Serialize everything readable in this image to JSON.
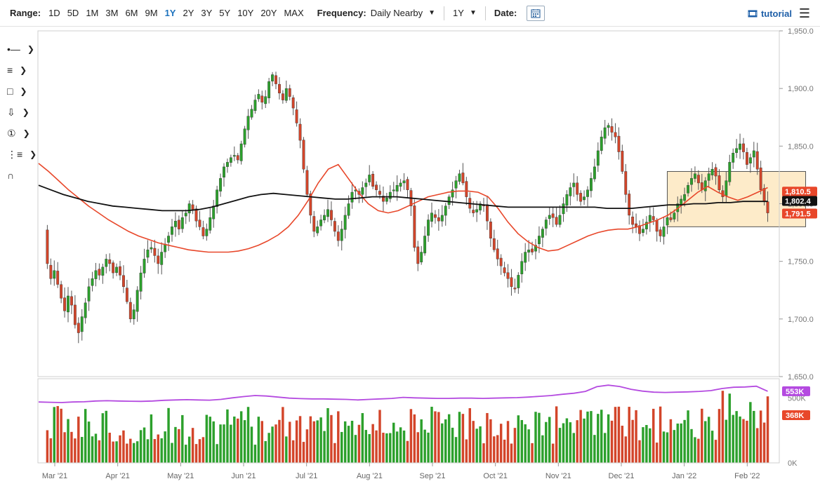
{
  "toolbar": {
    "range_label": "Range:",
    "ranges": [
      "1D",
      "5D",
      "1M",
      "3M",
      "6M",
      "9M",
      "1Y",
      "2Y",
      "3Y",
      "5Y",
      "10Y",
      "20Y",
      "MAX"
    ],
    "active_range": "1Y",
    "frequency_label": "Frequency:",
    "frequency_value": "Daily Nearby",
    "period_value": "1Y",
    "date_label": "Date:",
    "tutorial_label": "tutorial"
  },
  "tools": [
    "crosshair-icon",
    "trend-tools-icon",
    "shape-icon",
    "arrow-down-icon",
    "numbered-circle-icon",
    "fibonacci-icon",
    "magnet-icon"
  ],
  "chart_data": {
    "type": "candlestick",
    "price_axis": {
      "ticks": [
        "1,950.0",
        "1,900.0",
        "1,850.0",
        "1,800.0",
        "1,750.0",
        "1,700.0",
        "1,650.0"
      ],
      "ylim": [
        1650,
        1950
      ]
    },
    "x_axis": {
      "ticks": [
        "Mar '21",
        "Apr '21",
        "May '21",
        "Jun '21",
        "Jul '21",
        "Aug '21",
        "Sep '21",
        "Oct '21",
        "Nov '21",
        "Dec '21",
        "Jan '22",
        "Feb '22"
      ]
    },
    "price_labels": [
      {
        "text": "1,810.5",
        "color": "#e8472a"
      },
      {
        "text": "1,802.4",
        "color": "#111111"
      },
      {
        "text": "1,791.5",
        "color": "#e8472a"
      }
    ],
    "closes": [
      1776,
      1748,
      1735,
      1742,
      1730,
      1718,
      1707,
      1720,
      1712,
      1695,
      1688,
      1702,
      1714,
      1728,
      1735,
      1742,
      1738,
      1745,
      1752,
      1748,
      1740,
      1745,
      1738,
      1728,
      1715,
      1700,
      1708,
      1725,
      1740,
      1752,
      1760,
      1762,
      1755,
      1748,
      1758,
      1765,
      1772,
      1780,
      1785,
      1778,
      1788,
      1792,
      1800,
      1795,
      1785,
      1780,
      1772,
      1778,
      1788,
      1798,
      1812,
      1822,
      1832,
      1836,
      1840,
      1842,
      1838,
      1852,
      1865,
      1876,
      1882,
      1890,
      1895,
      1888,
      1893,
      1906,
      1912,
      1904,
      1896,
      1890,
      1900,
      1893,
      1883,
      1870,
      1855,
      1830,
      1808,
      1790,
      1776,
      1780,
      1786,
      1790,
      1795,
      1786,
      1776,
      1768,
      1778,
      1790,
      1800,
      1810,
      1812,
      1808,
      1814,
      1818,
      1825,
      1815,
      1812,
      1808,
      1802,
      1805,
      1810,
      1812,
      1816,
      1818,
      1820,
      1812,
      1798,
      1762,
      1748,
      1758,
      1772,
      1786,
      1792,
      1788,
      1785,
      1790,
      1798,
      1806,
      1812,
      1820,
      1826,
      1818,
      1806,
      1796,
      1792,
      1795,
      1800,
      1798,
      1785,
      1770,
      1760,
      1752,
      1746,
      1740,
      1735,
      1728,
      1726,
      1738,
      1750,
      1758,
      1760,
      1758,
      1764,
      1772,
      1778,
      1786,
      1790,
      1788,
      1782,
      1790,
      1800,
      1808,
      1814,
      1818,
      1808,
      1802,
      1806,
      1812,
      1822,
      1832,
      1846,
      1858,
      1866,
      1868,
      1862,
      1858,
      1845,
      1828,
      1808,
      1790,
      1782,
      1780,
      1774,
      1778,
      1784,
      1790,
      1786,
      1776,
      1772,
      1780,
      1788,
      1786,
      1792,
      1800,
      1804,
      1808,
      1816,
      1822,
      1826,
      1818,
      1812,
      1820,
      1826,
      1830,
      1824,
      1812,
      1806,
      1820,
      1836,
      1844,
      1848,
      1852,
      1845,
      1834,
      1840,
      1846,
      1830,
      1812,
      1802,
      1792
    ],
    "sma50": [
      1835,
      1828,
      1820,
      1812,
      1805,
      1798,
      1792,
      1786,
      1781,
      1776,
      1772,
      1769,
      1766,
      1764,
      1762,
      1760,
      1759,
      1758,
      1758,
      1758,
      1759,
      1761,
      1764,
      1768,
      1773,
      1780,
      1790,
      1803,
      1818,
      1830,
      1834,
      1822,
      1810,
      1800,
      1794,
      1792,
      1794,
      1798,
      1802,
      1806,
      1808,
      1810,
      1811,
      1811,
      1810,
      1806,
      1796,
      1784,
      1774,
      1767,
      1762,
      1759,
      1760,
      1764,
      1768,
      1772,
      1775,
      1777,
      1778,
      1778,
      1780,
      1783,
      1786,
      1790,
      1796,
      1803,
      1810,
      1815,
      1810,
      1806,
      1803,
      1806,
      1810,
      1814
    ],
    "sma200": [
      1816,
      1812,
      1808,
      1805,
      1802,
      1800,
      1798,
      1797,
      1796,
      1795,
      1794,
      1794,
      1794,
      1795,
      1797,
      1800,
      1803,
      1806,
      1808,
      1809,
      1808,
      1807,
      1806,
      1805,
      1804,
      1804,
      1805,
      1806,
      1806,
      1806,
      1805,
      1804,
      1803,
      1802,
      1801,
      1800,
      1799,
      1798,
      1797,
      1797,
      1797,
      1797,
      1797,
      1797,
      1797,
      1797,
      1796,
      1796,
      1796,
      1797,
      1798,
      1799,
      1799,
      1800,
      1800,
      1801,
      1801,
      1802,
      1802,
      1802
    ],
    "volume_axis": {
      "ticks": [
        "500K",
        "0K"
      ],
      "max": 650000
    },
    "volume_labels": [
      {
        "text": "553K",
        "color": "#b44ae0"
      },
      {
        "text": "368K",
        "color": "#e8472a"
      }
    ],
    "volume_avg": [
      470000,
      468000,
      466000,
      470000,
      472000,
      478000,
      480000,
      478000,
      476000,
      475000,
      478000,
      483000,
      486000,
      488000,
      486000,
      484000,
      490000,
      502000,
      512000,
      520000,
      516000,
      508000,
      500000,
      496000,
      494000,
      494000,
      492000,
      490000,
      486000,
      490000,
      494000,
      498000,
      506000,
      502000,
      500000,
      498000,
      498000,
      500000,
      500000,
      498000,
      500000,
      502000,
      504000,
      508000,
      514000,
      520000,
      530000,
      538000,
      552000,
      588000,
      600000,
      590000,
      568000,
      554000,
      546000,
      544000,
      546000,
      548000,
      552000,
      558000,
      574000,
      584000,
      586000,
      592000,
      553000
    ],
    "colors": {
      "up": "#2ca02c",
      "down": "#d3452a",
      "sma50": "#e8472a",
      "sma200": "#111111",
      "volume_avg": "#b44ae0",
      "box_fill": "#fdebc9",
      "box_stroke": "#555555"
    }
  }
}
